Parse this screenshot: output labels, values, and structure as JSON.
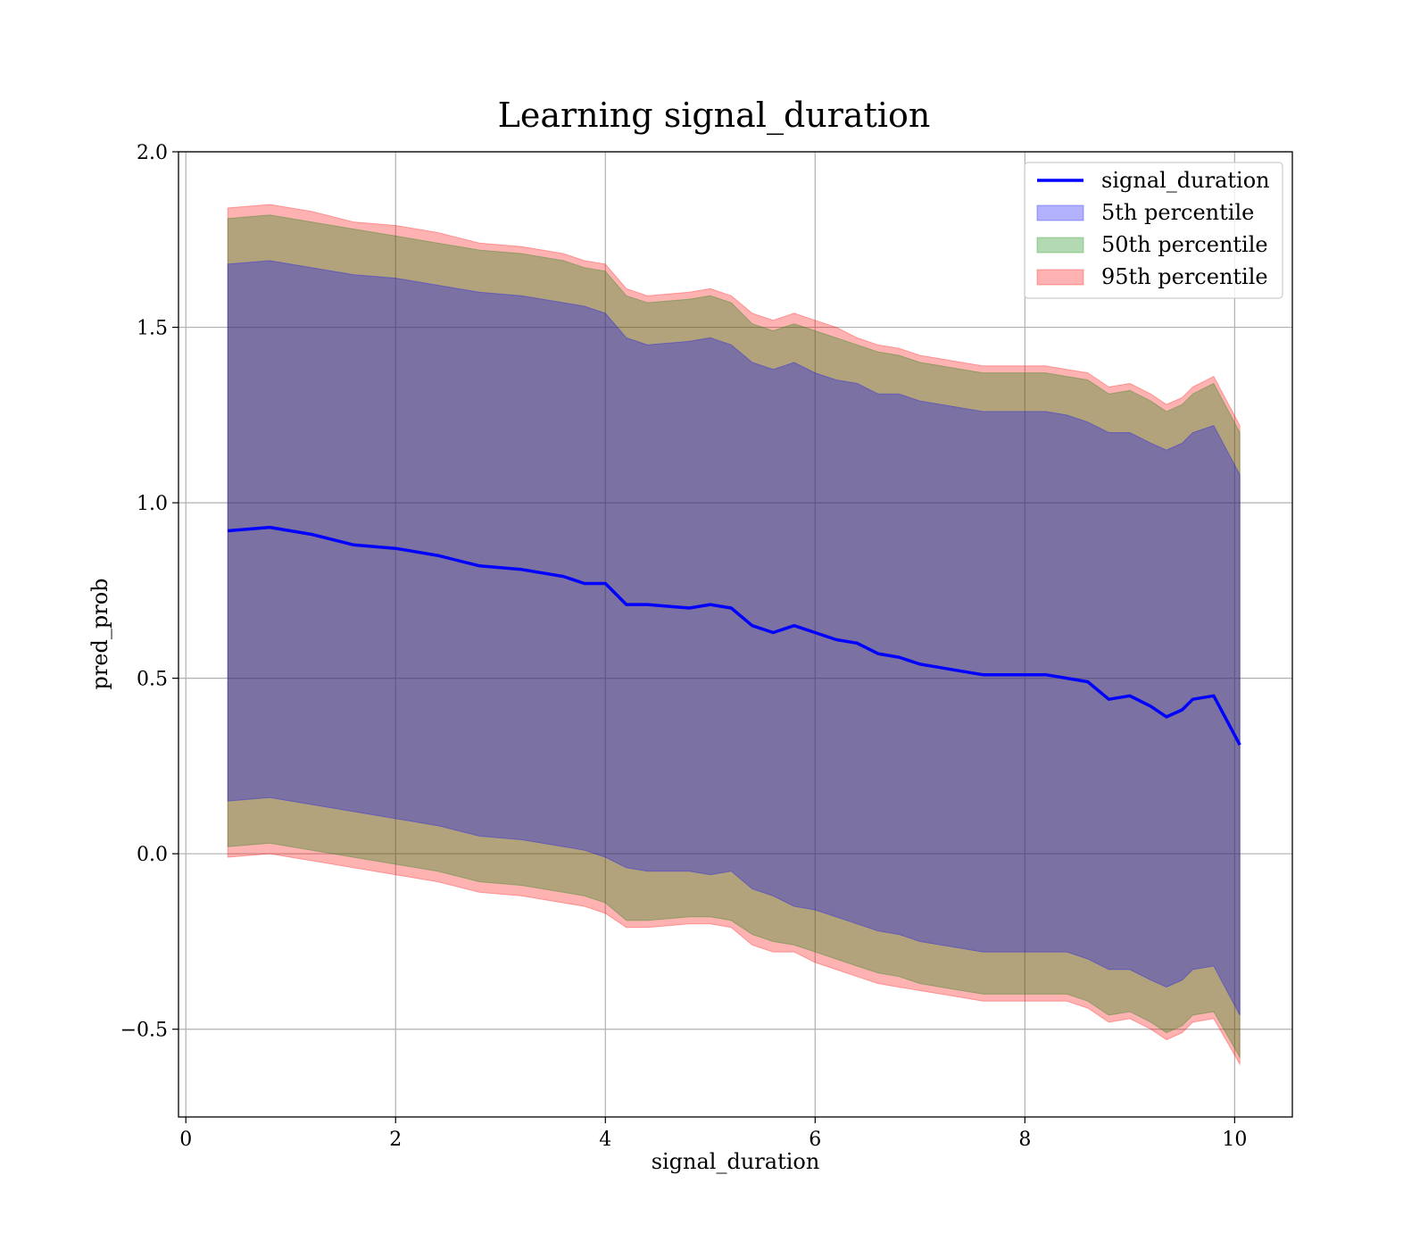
{
  "chart_data": {
    "type": "area",
    "title": "Learning signal_duration",
    "xlabel": "signal_duration",
    "ylabel": "pred_prob",
    "xlim": [
      -0.07,
      10.55
    ],
    "ylim": [
      -0.75,
      2.0
    ],
    "xticks": [
      0,
      2,
      4,
      6,
      8,
      10
    ],
    "yticks": [
      -0.5,
      0.0,
      0.5,
      1.0,
      1.5,
      2.0
    ],
    "xtick_labels": [
      "0",
      "2",
      "4",
      "6",
      "8",
      "10"
    ],
    "ytick_labels": [
      "−0.5",
      "0.0",
      "0.5",
      "1.0",
      "1.5",
      "2.0"
    ],
    "grid": true,
    "legend_position": "top-right",
    "x": [
      0.4,
      0.8,
      1.2,
      1.6,
      2.0,
      2.4,
      2.8,
      3.2,
      3.6,
      3.8,
      4.0,
      4.2,
      4.4,
      4.8,
      5.0,
      5.2,
      5.4,
      5.6,
      5.8,
      6.0,
      6.2,
      6.4,
      6.6,
      6.8,
      7.0,
      7.2,
      7.4,
      7.6,
      7.8,
      8.0,
      8.2,
      8.4,
      8.6,
      8.8,
      9.0,
      9.2,
      9.35,
      9.5,
      9.6,
      9.8,
      10.05
    ],
    "series": [
      {
        "name": "signal_duration",
        "kind": "line",
        "color": "#0000ff",
        "values": [
          0.92,
          0.93,
          0.91,
          0.88,
          0.87,
          0.85,
          0.82,
          0.81,
          0.79,
          0.77,
          0.77,
          0.71,
          0.71,
          0.7,
          0.71,
          0.7,
          0.65,
          0.63,
          0.65,
          0.63,
          0.61,
          0.6,
          0.57,
          0.56,
          0.54,
          0.53,
          0.52,
          0.51,
          0.51,
          0.51,
          0.51,
          0.5,
          0.49,
          0.44,
          0.45,
          0.42,
          0.39,
          0.41,
          0.44,
          0.45,
          0.31
        ]
      },
      {
        "name": "5th percentile",
        "kind": "band",
        "color": "#0000ff",
        "upper": [
          1.68,
          1.69,
          1.67,
          1.65,
          1.64,
          1.62,
          1.6,
          1.59,
          1.57,
          1.56,
          1.54,
          1.47,
          1.45,
          1.46,
          1.47,
          1.45,
          1.4,
          1.38,
          1.4,
          1.37,
          1.35,
          1.34,
          1.31,
          1.31,
          1.29,
          1.28,
          1.27,
          1.26,
          1.26,
          1.26,
          1.26,
          1.25,
          1.23,
          1.2,
          1.2,
          1.17,
          1.15,
          1.17,
          1.2,
          1.22,
          1.08
        ],
        "lower": [
          0.15,
          0.16,
          0.14,
          0.12,
          0.1,
          0.08,
          0.05,
          0.04,
          0.02,
          0.01,
          -0.01,
          -0.04,
          -0.05,
          -0.05,
          -0.06,
          -0.05,
          -0.1,
          -0.12,
          -0.15,
          -0.16,
          -0.18,
          -0.2,
          -0.22,
          -0.23,
          -0.25,
          -0.26,
          -0.27,
          -0.28,
          -0.28,
          -0.28,
          -0.28,
          -0.28,
          -0.3,
          -0.33,
          -0.33,
          -0.36,
          -0.38,
          -0.36,
          -0.33,
          -0.32,
          -0.46
        ]
      },
      {
        "name": "50th percentile",
        "kind": "band",
        "color": "#008000",
        "upper": [
          1.81,
          1.82,
          1.8,
          1.78,
          1.76,
          1.74,
          1.72,
          1.71,
          1.69,
          1.67,
          1.66,
          1.59,
          1.57,
          1.58,
          1.59,
          1.57,
          1.51,
          1.49,
          1.51,
          1.49,
          1.47,
          1.45,
          1.43,
          1.42,
          1.4,
          1.39,
          1.38,
          1.37,
          1.37,
          1.37,
          1.37,
          1.36,
          1.35,
          1.31,
          1.32,
          1.29,
          1.26,
          1.28,
          1.31,
          1.34,
          1.2
        ],
        "lower": [
          0.02,
          0.03,
          0.01,
          -0.01,
          -0.03,
          -0.05,
          -0.08,
          -0.09,
          -0.11,
          -0.12,
          -0.14,
          -0.19,
          -0.19,
          -0.18,
          -0.18,
          -0.19,
          -0.23,
          -0.25,
          -0.26,
          -0.28,
          -0.3,
          -0.32,
          -0.34,
          -0.35,
          -0.37,
          -0.38,
          -0.39,
          -0.4,
          -0.4,
          -0.4,
          -0.4,
          -0.4,
          -0.42,
          -0.46,
          -0.45,
          -0.48,
          -0.51,
          -0.49,
          -0.46,
          -0.45,
          -0.58
        ]
      },
      {
        "name": "95th percentile",
        "kind": "band",
        "color": "#ff0000",
        "upper": [
          1.84,
          1.85,
          1.83,
          1.8,
          1.79,
          1.77,
          1.74,
          1.73,
          1.71,
          1.69,
          1.68,
          1.61,
          1.59,
          1.6,
          1.61,
          1.59,
          1.54,
          1.52,
          1.54,
          1.52,
          1.5,
          1.47,
          1.45,
          1.44,
          1.42,
          1.41,
          1.4,
          1.39,
          1.39,
          1.39,
          1.39,
          1.38,
          1.37,
          1.33,
          1.34,
          1.31,
          1.28,
          1.3,
          1.33,
          1.36,
          1.22
        ],
        "lower": [
          -0.01,
          0.0,
          -0.02,
          -0.04,
          -0.06,
          -0.08,
          -0.11,
          -0.12,
          -0.14,
          -0.15,
          -0.17,
          -0.21,
          -0.21,
          -0.2,
          -0.2,
          -0.21,
          -0.26,
          -0.28,
          -0.28,
          -0.31,
          -0.33,
          -0.35,
          -0.37,
          -0.38,
          -0.39,
          -0.4,
          -0.41,
          -0.42,
          -0.42,
          -0.42,
          -0.42,
          -0.42,
          -0.44,
          -0.48,
          -0.47,
          -0.5,
          -0.53,
          -0.51,
          -0.48,
          -0.47,
          -0.6
        ]
      }
    ]
  }
}
